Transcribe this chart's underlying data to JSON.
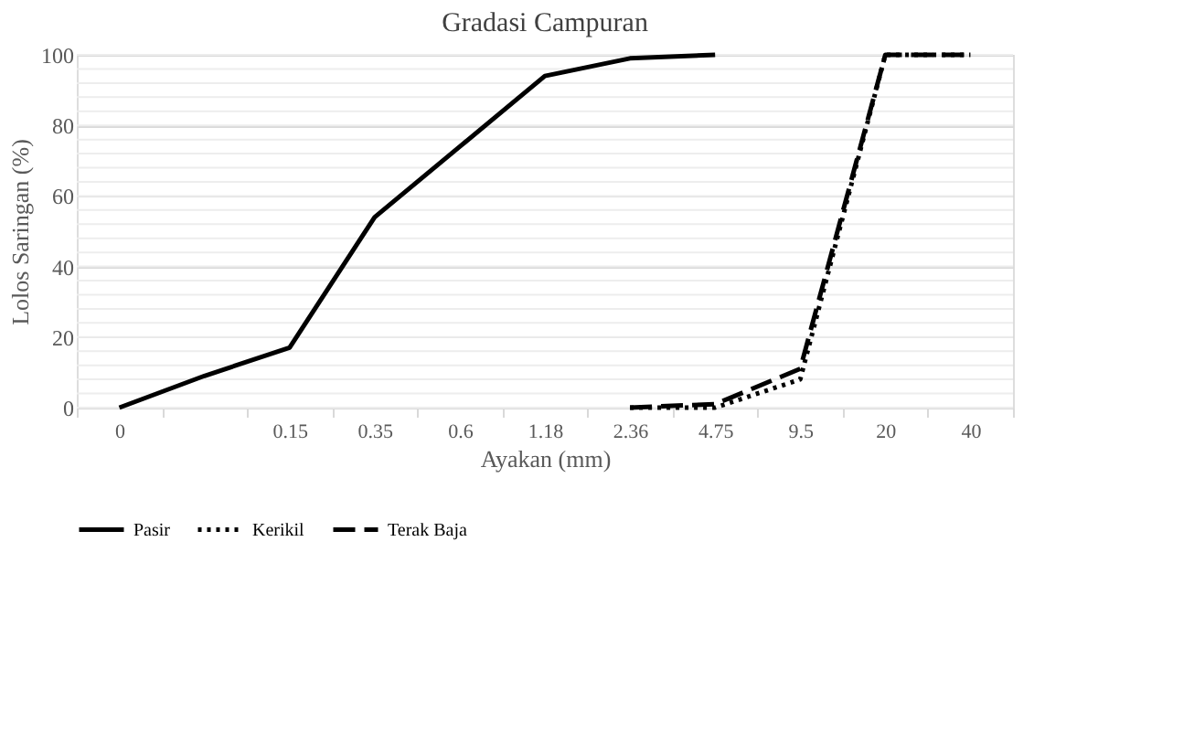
{
  "chart_data": {
    "type": "line",
    "title": "Gradasi Campuran",
    "xlabel": "Ayakan (mm)",
    "ylabel": "Lolos Saringan (%)",
    "categories": [
      "0",
      null,
      "0.15",
      "0.35",
      "0.6",
      "1.18",
      "2.36",
      "4.75",
      "9.5",
      "20",
      "40"
    ],
    "series": [
      {
        "name": "Pasir",
        "color": "#000000",
        "line_style": "solid",
        "values": [
          0,
          9,
          17,
          54,
          74,
          94,
          99,
          100,
          null,
          null,
          null
        ]
      },
      {
        "name": "Kerikil",
        "color": "#000000",
        "line_style": "dotted",
        "values": [
          null,
          null,
          null,
          null,
          null,
          null,
          0,
          0,
          8,
          100,
          100
        ]
      },
      {
        "name": "Terak Baja",
        "color": "#000000",
        "line_style": "dashed",
        "values": [
          null,
          null,
          null,
          null,
          null,
          null,
          0,
          1,
          11,
          100,
          100
        ]
      }
    ],
    "ylim": [
      0,
      100
    ],
    "yticks": [
      0,
      20,
      40,
      60,
      80,
      100
    ],
    "grid": "y",
    "legend": "bottom",
    "marker": "none"
  }
}
